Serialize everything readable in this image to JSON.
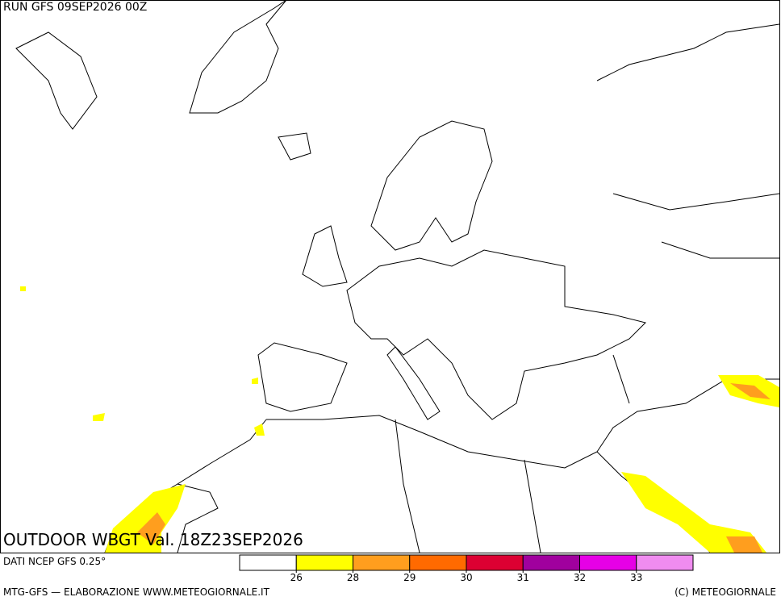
{
  "header": {
    "run": "RUN GFS 09SEP2026 00Z",
    "field": "OUTDOOR WBGT Val. 18Z23SEP2026"
  },
  "footer": {
    "source": "DATI NCEP GFS 0.25°",
    "credit_left": "MTG-GFS — ELABORAZIONE WWW.METEOGIORNALE.IT",
    "credit_right": "(C) METEOGIORNALE"
  },
  "colorbar": {
    "colors": [
      "#ffffff",
      "#ffff00",
      "#ff9e1e",
      "#ff6a00",
      "#dc0032",
      "#a0009e",
      "#e600e6",
      "#f08cf0"
    ],
    "ticks": [
      26,
      28,
      29,
      30,
      31,
      32,
      33
    ]
  }
}
